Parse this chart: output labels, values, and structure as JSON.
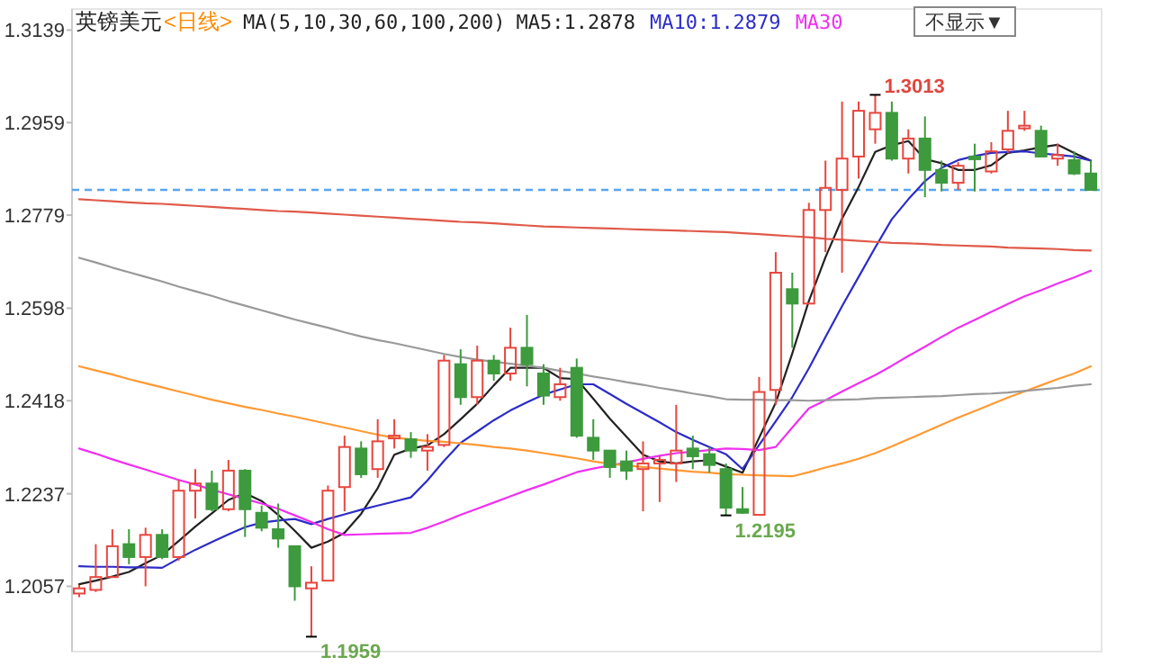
{
  "chart_data": {
    "type": "candlestick",
    "title": "英镑美元",
    "subtitle": "<日线>",
    "categories": [
      null,
      null,
      null,
      null,
      null,
      null,
      null,
      null,
      null,
      null,
      null,
      null,
      null,
      null,
      null,
      null,
      null,
      null,
      null,
      null,
      null,
      null,
      null,
      null,
      null,
      null,
      null,
      null,
      null,
      null,
      null,
      null,
      null,
      null,
      null,
      null,
      null,
      null,
      null,
      null,
      null,
      null,
      null,
      null,
      null,
      null,
      null,
      null,
      null,
      null,
      null,
      null,
      null,
      null,
      null,
      null,
      null,
      null,
      null,
      null,
      null,
      null
    ],
    "ohlc": [
      [
        1.2043,
        1.206,
        1.2036,
        1.2053
      ],
      [
        1.205,
        1.2139,
        1.2046,
        1.2075
      ],
      [
        1.2075,
        1.2168,
        1.2075,
        1.2135
      ],
      [
        1.2139,
        1.2168,
        1.21,
        1.2114
      ],
      [
        1.2114,
        1.2171,
        1.2057,
        1.2157
      ],
      [
        1.2157,
        1.2168,
        1.211,
        1.2114
      ],
      [
        1.2114,
        1.2264,
        1.2107,
        1.2243
      ],
      [
        1.2243,
        1.2285,
        1.2189,
        1.2257
      ],
      [
        1.2257,
        1.2282,
        1.2203,
        1.2207
      ],
      [
        1.2207,
        1.2303,
        1.2203,
        1.2282
      ],
      [
        1.2282,
        1.2285,
        1.2153,
        1.2207
      ],
      [
        1.22,
        1.2214,
        1.2164,
        1.2171
      ],
      [
        1.2168,
        1.2218,
        1.2132,
        1.215
      ],
      [
        1.2135,
        1.2135,
        1.2029,
        1.2057
      ],
      [
        1.2053,
        1.2096,
        1.1959,
        1.2064
      ],
      [
        1.2068,
        1.2253,
        1.2068,
        1.2243
      ],
      [
        1.225,
        1.235,
        1.2203,
        1.2328
      ],
      [
        1.2325,
        1.2339,
        1.2268,
        1.2275
      ],
      [
        1.2285,
        1.2382,
        1.2268,
        1.2339
      ],
      [
        1.2346,
        1.2382,
        1.2325,
        1.235
      ],
      [
        1.2343,
        1.2357,
        1.2307,
        1.2321
      ],
      [
        1.2321,
        1.2353,
        1.2282,
        1.2328
      ],
      [
        1.2332,
        1.2507,
        1.2328,
        1.2496
      ],
      [
        1.2489,
        1.2518,
        1.241,
        1.2425
      ],
      [
        1.2425,
        1.2525,
        1.241,
        1.2496
      ],
      [
        1.2496,
        1.2507,
        1.2457,
        1.2471
      ],
      [
        1.2471,
        1.256,
        1.2457,
        1.2521
      ],
      [
        1.2521,
        1.2585,
        1.2446,
        1.2489
      ],
      [
        1.2471,
        1.2489,
        1.241,
        1.2428
      ],
      [
        1.2425,
        1.2482,
        1.2418,
        1.245
      ],
      [
        1.2482,
        1.25,
        1.2346,
        1.235
      ],
      [
        1.2346,
        1.2382,
        1.2303,
        1.2321
      ],
      [
        1.2321,
        1.2321,
        1.2268,
        1.2289
      ],
      [
        1.23,
        1.2321,
        1.2264,
        1.2282
      ],
      [
        1.2285,
        1.2339,
        1.2203,
        1.2296
      ],
      [
        1.2296,
        1.231,
        1.2221,
        1.2303
      ],
      [
        1.2296,
        1.241,
        1.226,
        1.2321
      ],
      [
        1.2325,
        1.235,
        1.2285,
        1.231
      ],
      [
        1.2314,
        1.2328,
        1.2278,
        1.2293
      ],
      [
        1.2285,
        1.2296,
        1.2195,
        1.221
      ],
      [
        1.2207,
        1.225,
        1.2198,
        1.22
      ],
      [
        1.2196,
        1.2464,
        1.2196,
        1.2435
      ],
      [
        1.2439,
        1.2707,
        1.241,
        1.2667
      ],
      [
        1.2635,
        1.2667,
        1.2521,
        1.2607
      ],
      [
        1.2607,
        1.2803,
        1.2607,
        1.2789
      ],
      [
        1.2789,
        1.2885,
        1.2707,
        1.2832
      ],
      [
        1.2828,
        1.3,
        1.2667,
        1.2889
      ],
      [
        1.2893,
        1.3,
        1.285,
        1.2982
      ],
      [
        1.2946,
        1.3013,
        1.2918,
        1.2978
      ],
      [
        1.2978,
        1.3,
        1.2885,
        1.2889
      ],
      [
        1.2889,
        1.2946,
        1.286,
        1.2928
      ],
      [
        1.2928,
        1.2971,
        1.2814,
        1.2867
      ],
      [
        1.2867,
        1.2885,
        1.2825,
        1.2842
      ],
      [
        1.2842,
        1.2882,
        1.2828,
        1.2875
      ],
      [
        1.2893,
        1.2918,
        1.2825,
        1.2889
      ],
      [
        1.2864,
        1.2921,
        1.286,
        1.2903
      ],
      [
        1.2907,
        1.2982,
        1.29,
        1.2943
      ],
      [
        1.295,
        1.2982,
        1.2943,
        1.2953
      ],
      [
        1.2943,
        1.2953,
        1.2893,
        1.2893
      ],
      [
        1.2889,
        1.2918,
        1.2875,
        1.2896
      ],
      [
        1.2886,
        1.2903,
        1.2857,
        1.286
      ],
      [
        1.286,
        1.2885,
        1.2828,
        1.2828
      ]
    ],
    "series": [
      {
        "name": "MA5:1.2878",
        "type": "line",
        "color": "#222222",
        "values": [
          1.2061,
          1.2068,
          1.2076,
          1.2085,
          1.2102,
          1.2118,
          1.2145,
          1.2173,
          1.2199,
          1.2225,
          1.2238,
          1.2223,
          1.2196,
          1.2165,
          1.2132,
          1.2144,
          1.2161,
          1.2198,
          1.2248,
          1.2313,
          1.2325,
          1.2331,
          1.2353,
          1.2382,
          1.2412,
          1.2448,
          1.2482,
          1.2482,
          1.2482,
          1.2462,
          1.246,
          1.2422,
          1.2383,
          1.2348,
          1.2313,
          1.23,
          1.2296,
          1.23,
          1.2302,
          1.229,
          1.2278,
          1.2346,
          1.2414,
          1.251,
          1.2612,
          1.2697,
          1.2772,
          1.2834,
          1.2902,
          1.2915,
          1.2923,
          1.2888,
          1.288,
          1.2867,
          1.2867,
          1.2876,
          1.29,
          1.2905,
          1.2911,
          1.2916,
          1.29,
          1.2885
        ]
      },
      {
        "name": "MA10:1.2879",
        "type": "line",
        "color": "#2c2cc8",
        "values": [
          1.2096,
          1.2095,
          1.2095,
          1.2094,
          1.2094,
          1.2093,
          1.2111,
          1.2128,
          1.2143,
          1.2158,
          1.2172,
          1.2181,
          1.2185,
          1.2188,
          1.2178,
          1.2188,
          1.2197,
          1.2206,
          1.2214,
          1.2222,
          1.223,
          1.2263,
          1.2301,
          1.2336,
          1.2358,
          1.238,
          1.2399,
          1.2415,
          1.243,
          1.244,
          1.245,
          1.245,
          1.2431,
          1.2412,
          1.2394,
          1.2376,
          1.2357,
          1.2342,
          1.2328,
          1.2314,
          1.2285,
          1.2332,
          1.2378,
          1.2425,
          1.2481,
          1.2542,
          1.2602,
          1.2659,
          1.2716,
          1.2771,
          1.281,
          1.2845,
          1.2871,
          1.2886,
          1.2894,
          1.29,
          1.2902,
          1.2903,
          1.2899,
          1.2896,
          1.2893,
          1.2885
        ]
      },
      {
        "name": "MA30",
        "type": "line",
        "color": "#f030f0",
        "values": [
          1.2325,
          1.2315,
          1.2304,
          1.2294,
          1.2284,
          1.2274,
          1.2264,
          1.2255,
          1.2245,
          1.2236,
          1.2227,
          1.2218,
          1.2208,
          1.2195,
          1.2182,
          1.2168,
          1.2157,
          1.2158,
          1.2159,
          1.216,
          1.2161,
          1.2171,
          1.2183,
          1.2196,
          1.2208,
          1.222,
          1.2232,
          1.2244,
          1.2255,
          1.2267,
          1.2279,
          1.2286,
          1.2292,
          1.2298,
          1.2305,
          1.2311,
          1.2316,
          1.2319,
          1.2322,
          1.2325,
          1.2324,
          1.2322,
          1.2328,
          1.2366,
          1.2403,
          1.2419,
          1.2436,
          1.2452,
          1.2468,
          1.2486,
          1.2505,
          1.2523,
          1.2542,
          1.256,
          1.2575,
          1.2591,
          1.2606,
          1.2621,
          1.2633,
          1.2646,
          1.2658,
          1.2671
        ]
      },
      {
        "type": "line",
        "color": "#ff9933",
        "values": [
          1.2485,
          1.2477,
          1.2469,
          1.246,
          1.2452,
          1.2444,
          1.2436,
          1.2428,
          1.242,
          1.2413,
          1.2406,
          1.24,
          1.2393,
          1.2387,
          1.238,
          1.2373,
          1.2366,
          1.2359,
          1.2352,
          1.2346,
          1.2343,
          1.234,
          1.2338,
          1.2335,
          1.2332,
          1.2328,
          1.2325,
          1.2321,
          1.2316,
          1.2311,
          1.2306,
          1.23,
          1.2295,
          1.2292,
          1.2289,
          1.2286,
          1.2283,
          1.228,
          1.2278,
          1.2275,
          1.2274,
          1.2273,
          1.2272,
          1.2271,
          1.2279,
          1.2288,
          1.2296,
          1.2305,
          1.2316,
          1.2329,
          1.2343,
          1.2357,
          1.2371,
          1.2385,
          1.2398,
          1.2411,
          1.2424,
          1.2436,
          1.2448,
          1.246,
          1.2471,
          1.2485
        ]
      },
      {
        "type": "line",
        "color": "#999999",
        "values": [
          1.2696,
          1.2687,
          1.2677,
          1.2668,
          1.2659,
          1.265,
          1.264,
          1.2631,
          1.2622,
          1.2612,
          1.2603,
          1.2594,
          1.2585,
          1.2576,
          1.2568,
          1.256,
          1.2551,
          1.2543,
          1.2536,
          1.253,
          1.2523,
          1.2516,
          1.2509,
          1.2503,
          1.2498,
          1.2494,
          1.249,
          1.2486,
          1.2482,
          1.2476,
          1.2471,
          1.2465,
          1.246,
          1.2454,
          1.2449,
          1.2443,
          1.2438,
          1.2432,
          1.2427,
          1.2421,
          1.242,
          1.242,
          1.2419,
          1.2419,
          1.2418,
          1.2419,
          1.242,
          1.2421,
          1.2423,
          1.2424,
          1.2425,
          1.2426,
          1.2427,
          1.2429,
          1.2431,
          1.2432,
          1.2434,
          1.2437,
          1.244,
          1.2443,
          1.2447,
          1.245
        ]
      },
      {
        "type": "line",
        "color": "#e05a4a",
        "values": [
          1.281,
          1.2808,
          1.2806,
          1.2804,
          1.2802,
          1.2801,
          1.2799,
          1.2797,
          1.2795,
          1.2793,
          1.2791,
          1.2789,
          1.2787,
          1.2786,
          1.2784,
          1.2782,
          1.278,
          1.2778,
          1.2776,
          1.2774,
          1.2772,
          1.277,
          1.2768,
          1.2766,
          1.2765,
          1.2763,
          1.2761,
          1.2759,
          1.2757,
          1.2756,
          1.2755,
          1.2754,
          1.2753,
          1.2752,
          1.2751,
          1.275,
          1.2749,
          1.2748,
          1.2747,
          1.2746,
          1.2744,
          1.2742,
          1.274,
          1.2738,
          1.2736,
          1.2733,
          1.2731,
          1.2729,
          1.2727,
          1.2725,
          1.2724,
          1.2723,
          1.2721,
          1.272,
          1.2719,
          1.2718,
          1.2716,
          1.2715,
          1.2714,
          1.2713,
          1.2711,
          1.271
        ]
      }
    ],
    "ylim": [
      1.193,
      1.318
    ],
    "yticks": [
      1.2057,
      1.2237,
      1.2418,
      1.2598,
      1.2779,
      1.2959,
      1.3139
    ],
    "tick_labels": "y",
    "legend": "top",
    "grid": false,
    "ref_lines": [
      {
        "axis": "y",
        "value": 1.2828,
        "color": "#5aa5f0",
        "line_style": "dashed"
      }
    ],
    "annotations": [
      "MA(5,10,30,60,100,200)",
      "不显示▼",
      "1.3013",
      "1.1959",
      "1.2195"
    ]
  }
}
